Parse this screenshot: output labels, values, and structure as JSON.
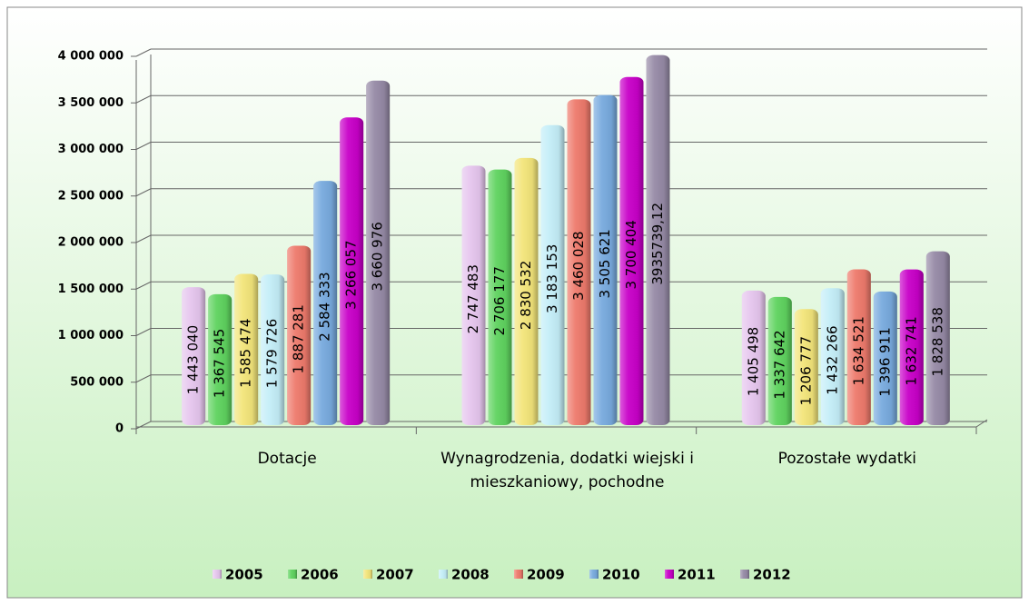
{
  "chart_data": {
    "type": "bar",
    "categories": [
      "Dotacje",
      "Wynagrodzenia, dodatki wiejski i mieszkaniowy, pochodne",
      "Pozostałe wydatki"
    ],
    "series": [
      {
        "name": "2005",
        "color": "#e6c6ee",
        "values": [
          1443040,
          2747483,
          1405498
        ],
        "value_labels": [
          "1 443 040",
          "2 747 483",
          "1 405 498"
        ]
      },
      {
        "name": "2006",
        "color": "#5fd35f",
        "values": [
          1367545,
          2706177,
          1337642
        ],
        "value_labels": [
          "1 367 545",
          "2 706 177",
          "1 337 642"
        ]
      },
      {
        "name": "2007",
        "color": "#f3e57a",
        "values": [
          1585474,
          2830532,
          1206777
        ],
        "value_labels": [
          "1 585 474",
          "2 830 532",
          "1 206 777"
        ]
      },
      {
        "name": "2008",
        "color": "#c4eef8",
        "values": [
          1579726,
          3183153,
          1432266
        ],
        "value_labels": [
          "1 579 726",
          "3 183 153",
          "1 432 266"
        ]
      },
      {
        "name": "2009",
        "color": "#ee7a6c",
        "values": [
          1887281,
          3460028,
          1634521
        ],
        "value_labels": [
          "1 887 281",
          "3 460 028",
          "1 634 521"
        ]
      },
      {
        "name": "2010",
        "color": "#78aade",
        "values": [
          2584333,
          3505621,
          1396911
        ],
        "value_labels": [
          "2 584 333",
          "3 505 621",
          "1 396 911"
        ]
      },
      {
        "name": "2011",
        "color": "#c800c8",
        "values": [
          3266057,
          3700404,
          1632741
        ],
        "value_labels": [
          "3 266 057",
          "3 700 404",
          "1 632 741"
        ]
      },
      {
        "name": "2012",
        "color": "#968aa6",
        "values": [
          3660976,
          3935739.12,
          1828538
        ],
        "value_labels": [
          "3 660 976",
          "3935739,12",
          "1 828 538"
        ]
      }
    ],
    "ylim": [
      0,
      4000000
    ],
    "yticks": [
      0,
      {
        "value": 500000,
        "label": "500 000"
      },
      {
        "value": 1000000,
        "label": "1 000 000"
      },
      {
        "value": 1500000,
        "label": "1 500 000"
      },
      {
        "value": 2000000,
        "label": "2 000 000"
      },
      {
        "value": 2500000,
        "label": "2 500 000"
      },
      {
        "value": 3000000,
        "label": "3 000 000"
      },
      {
        "value": 3500000,
        "label": "3 500 000"
      },
      {
        "value": 4000000,
        "label": "4 000 000"
      }
    ],
    "grid": true,
    "legend": "bottom"
  }
}
